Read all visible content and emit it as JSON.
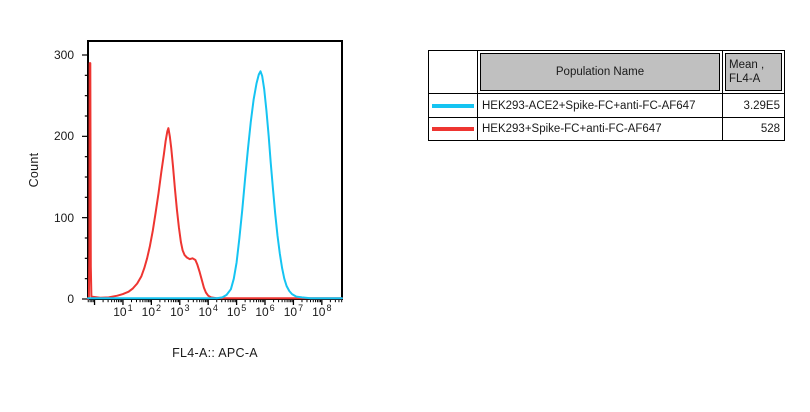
{
  "figure": {
    "background": "#ffffff",
    "axis_color": "#000000"
  },
  "chart_data": {
    "type": "line",
    "subtype": "flow-cytometry-histogram-overlay",
    "title": "",
    "xlabel": "FL4-A:: APC-A",
    "ylabel": "Count",
    "grid": false,
    "x_scale": "log10",
    "x_log_range": [
      -0.23,
      8.71
    ],
    "x_tick_base": "10",
    "x_decade_labels": [
      1,
      2,
      3,
      4,
      5,
      6,
      7,
      8
    ],
    "ylim": [
      0,
      300
    ],
    "y_major_ticks": [
      0,
      100,
      200,
      300
    ],
    "y_minor_tick_step": 25,
    "series": [
      {
        "name": "HEK293+Spike-FC+anti-FC-AF647",
        "color": "#ee3531",
        "peak": {
          "x_log": 2.6,
          "count": 210
        },
        "points": [
          [
            -0.23,
            0
          ],
          [
            -0.2,
            3
          ],
          [
            -0.18,
            60
          ],
          [
            -0.17,
            290
          ],
          [
            -0.15,
            290
          ],
          [
            -0.13,
            40
          ],
          [
            -0.11,
            3
          ],
          [
            0.2,
            1.5
          ],
          [
            0.5,
            2
          ],
          [
            0.8,
            4
          ],
          [
            1.0,
            6
          ],
          [
            1.2,
            9
          ],
          [
            1.35,
            13
          ],
          [
            1.5,
            19
          ],
          [
            1.65,
            28
          ],
          [
            1.75,
            38
          ],
          [
            1.85,
            50
          ],
          [
            1.95,
            65
          ],
          [
            2.05,
            84
          ],
          [
            2.15,
            106
          ],
          [
            2.25,
            130
          ],
          [
            2.35,
            156
          ],
          [
            2.44,
            178
          ],
          [
            2.5,
            194
          ],
          [
            2.56,
            206
          ],
          [
            2.6,
            210
          ],
          [
            2.65,
            200
          ],
          [
            2.7,
            186
          ],
          [
            2.76,
            163
          ],
          [
            2.83,
            136
          ],
          [
            2.9,
            110
          ],
          [
            2.97,
            88
          ],
          [
            3.04,
            70
          ],
          [
            3.1,
            60
          ],
          [
            3.17,
            54
          ],
          [
            3.25,
            51
          ],
          [
            3.35,
            49
          ],
          [
            3.45,
            50
          ],
          [
            3.55,
            48
          ],
          [
            3.62,
            42
          ],
          [
            3.7,
            33
          ],
          [
            3.78,
            23
          ],
          [
            3.85,
            14
          ],
          [
            3.92,
            8
          ],
          [
            4.0,
            4
          ],
          [
            4.1,
            2
          ],
          [
            4.3,
            1
          ],
          [
            5.5,
            1
          ],
          [
            7.0,
            1
          ],
          [
            8.71,
            1
          ]
        ]
      },
      {
        "name": "HEK293-ACE2+Spike-FC+anti-FC-AF647",
        "color": "#15c4f2",
        "peak": {
          "x_log": 5.84,
          "count": 280
        },
        "points": [
          [
            -0.23,
            1
          ],
          [
            0.5,
            1
          ],
          [
            1.5,
            1
          ],
          [
            2.5,
            1
          ],
          [
            3.5,
            1
          ],
          [
            4.3,
            1
          ],
          [
            4.5,
            2
          ],
          [
            4.65,
            5
          ],
          [
            4.8,
            12
          ],
          [
            4.9,
            25
          ],
          [
            5.0,
            45
          ],
          [
            5.1,
            75
          ],
          [
            5.2,
            110
          ],
          [
            5.3,
            148
          ],
          [
            5.4,
            185
          ],
          [
            5.5,
            218
          ],
          [
            5.6,
            245
          ],
          [
            5.7,
            265
          ],
          [
            5.78,
            276
          ],
          [
            5.84,
            280
          ],
          [
            5.9,
            274
          ],
          [
            5.97,
            258
          ],
          [
            6.05,
            232
          ],
          [
            6.13,
            200
          ],
          [
            6.2,
            168
          ],
          [
            6.28,
            135
          ],
          [
            6.36,
            105
          ],
          [
            6.44,
            78
          ],
          [
            6.52,
            56
          ],
          [
            6.6,
            38
          ],
          [
            6.68,
            25
          ],
          [
            6.76,
            16
          ],
          [
            6.85,
            10
          ],
          [
            6.95,
            6
          ],
          [
            7.1,
            3
          ],
          [
            7.3,
            2
          ],
          [
            7.6,
            1
          ],
          [
            8.2,
            1
          ],
          [
            8.71,
            1
          ]
        ]
      }
    ]
  },
  "legend_table": {
    "header": {
      "population": "Population Name",
      "mean_line1": "Mean ,",
      "mean_line2": "FL4-A"
    },
    "header_bg": "#c0c0c0",
    "rows": [
      {
        "swatch_color": "#15c4f2",
        "name": "HEK293-ACE2+Spike-FC+anti-FC-AF647",
        "mean": "3.29E5"
      },
      {
        "swatch_color": "#ee3531",
        "name": "HEK293+Spike-FC+anti-FC-AF647",
        "mean": "528"
      }
    ]
  }
}
